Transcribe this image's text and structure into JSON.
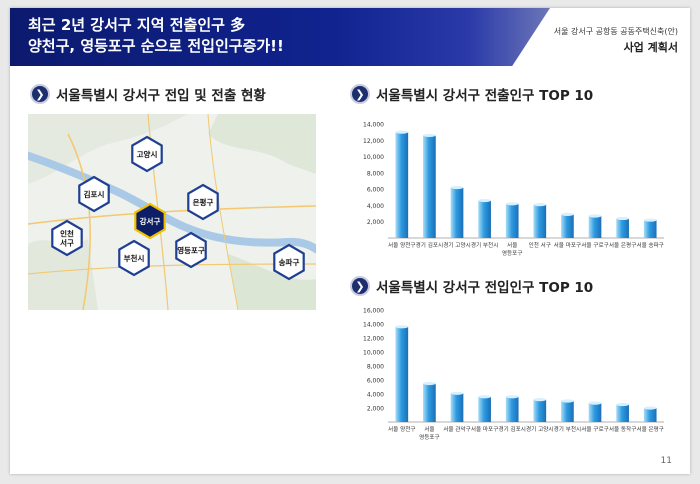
{
  "header": {
    "title_line1": "최근 2년 강서구 지역 전출인구 多",
    "title_line2": "양천구, 영등포구 순으로 전입인구증가!!",
    "project_subtitle": "서울 강서구 공항동 공동주택신축(안)",
    "project_title": "사업 계획서"
  },
  "sections": {
    "map_title": "서울특별시 강서구 전입 및 전출 현황",
    "outflow_title": "서울특별시 강서구 전출인구 TOP 10",
    "inflow_title": "서울특별시 강서구 전입인구 TOP 10"
  },
  "map": {
    "regions": [
      {
        "id": "goyang",
        "lines": [
          "고양시"
        ],
        "highlight": false
      },
      {
        "id": "gimpo",
        "lines": [
          "김포시"
        ],
        "highlight": false
      },
      {
        "id": "eunpyeong",
        "lines": [
          "은평구"
        ],
        "highlight": false
      },
      {
        "id": "gangseo",
        "lines": [
          "강서구"
        ],
        "highlight": true
      },
      {
        "id": "incheon-seogu",
        "lines": [
          "인천",
          "서구"
        ],
        "highlight": false
      },
      {
        "id": "bucheon",
        "lines": [
          "부천시"
        ],
        "highlight": false
      },
      {
        "id": "yeongdeungpo",
        "lines": [
          "영등포구"
        ],
        "highlight": false
      },
      {
        "id": "songpa",
        "lines": [
          "송파구"
        ],
        "highlight": false
      }
    ]
  },
  "chart_data": [
    {
      "type": "bar",
      "title": "서울특별시 강서구 전출인구 TOP 10",
      "categories": [
        [
          "서울 양천구"
        ],
        [
          "경기 김포시"
        ],
        [
          "경기 고양시"
        ],
        [
          "경기 부천시"
        ],
        [
          "서울",
          "영등포구"
        ],
        [
          "인천 서구"
        ],
        [
          "서울 마포구"
        ],
        [
          "서울 구로구"
        ],
        [
          "서울 은평구"
        ],
        [
          "서울 송파구"
        ]
      ],
      "values": [
        13000,
        12600,
        6200,
        4600,
        4200,
        4100,
        2900,
        2700,
        2400,
        2200
      ],
      "ylim": [
        0,
        14000
      ],
      "yticks": [
        2000,
        4000,
        6000,
        8000,
        10000,
        12000,
        14000
      ],
      "ytick_labels": [
        "2,000",
        "4,000",
        "6,000",
        "8,000",
        "10,000",
        "12,000",
        "14,000"
      ],
      "grid": false,
      "color": "#2e9be0"
    },
    {
      "type": "bar",
      "title": "서울특별시 강서구 전입인구 TOP 10",
      "categories": [
        [
          "서울 양천구"
        ],
        [
          "서울",
          "영등포구"
        ],
        [
          "서울 관악구"
        ],
        [
          "서울 마포구"
        ],
        [
          "경기 김포시"
        ],
        [
          "경기 고양시"
        ],
        [
          "경기 부천시"
        ],
        [
          "서울 구로구"
        ],
        [
          "서울 동작구"
        ],
        [
          "서울 은평구"
        ]
      ],
      "values": [
        13600,
        5500,
        4100,
        3600,
        3600,
        3200,
        3000,
        2700,
        2500,
        2000
      ],
      "ylim": [
        0,
        16000
      ],
      "yticks": [
        2000,
        4000,
        6000,
        8000,
        10000,
        12000,
        14000,
        16000
      ],
      "ytick_labels": [
        "2,000",
        "4,000",
        "6,000",
        "8,000",
        "10,000",
        "12,000",
        "14,000",
        "16,000"
      ],
      "grid": false,
      "color": "#2e9be0"
    }
  ],
  "footer": {
    "page_number": "11"
  }
}
